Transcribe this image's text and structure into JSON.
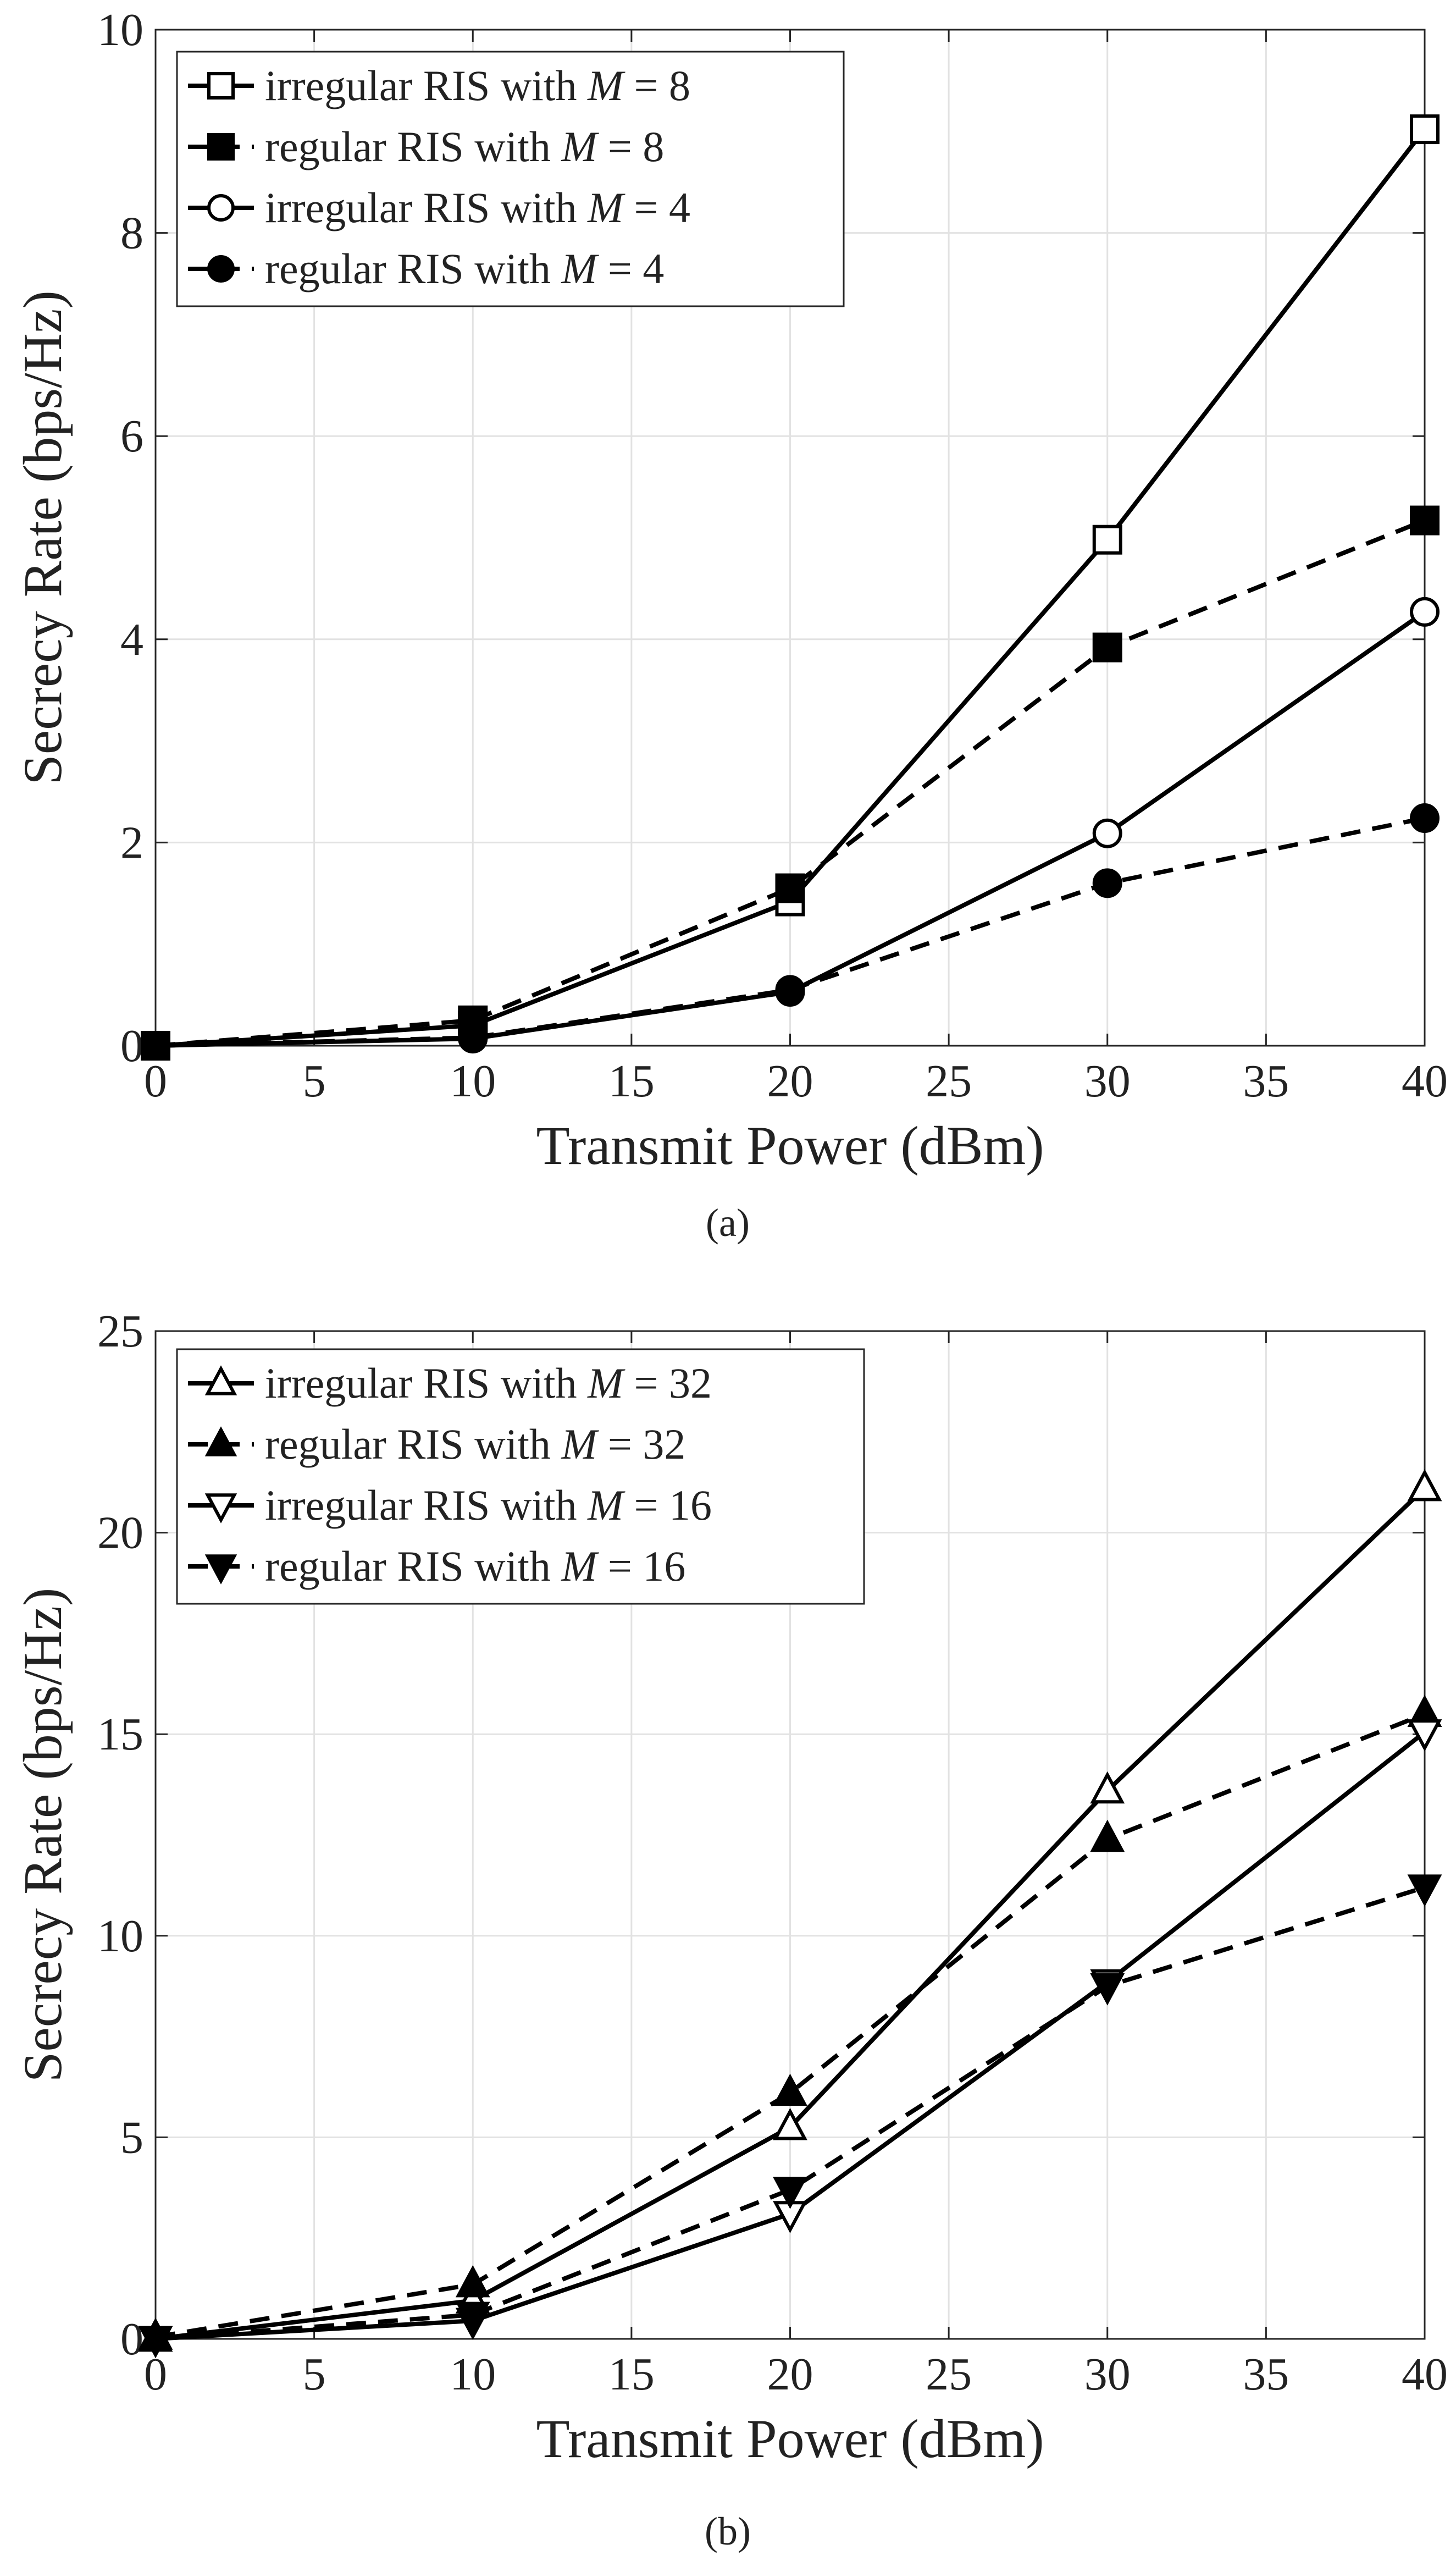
{
  "figure": {
    "captions": [
      "(a)",
      "(b)"
    ]
  },
  "chart_data": [
    {
      "type": "line",
      "caption": "(a)",
      "xlabel": "Transmit Power (dBm)",
      "ylabel": "Secrecy Rate (bps/Hz)",
      "xlim": [
        0,
        40
      ],
      "ylim": [
        0,
        10
      ],
      "xticks": [
        0,
        5,
        10,
        15,
        20,
        25,
        30,
        35,
        40
      ],
      "yticks": [
        0,
        2,
        4,
        6,
        8,
        10
      ],
      "grid": true,
      "legend_position": "top-left",
      "x": [
        0,
        10,
        20,
        30,
        40
      ],
      "series": [
        {
          "name": "irregular RIS with M = 8",
          "label_prefix": "irregular RIS with ",
          "label_var": "M",
          "label_val": "8",
          "values": [
            0,
            0.2,
            1.42,
            4.98,
            9.02
          ],
          "marker": "square",
          "filled": false,
          "dashed": false
        },
        {
          "name": "regular RIS with M = 8",
          "label_prefix": "regular RIS with ",
          "label_var": "M",
          "label_val": "8",
          "values": [
            0,
            0.25,
            1.55,
            3.92,
            5.17
          ],
          "marker": "square",
          "filled": true,
          "dashed": true
        },
        {
          "name": "irregular RIS with M = 4",
          "label_prefix": "irregular RIS with ",
          "label_var": "M",
          "label_val": "4",
          "values": [
            0,
            0.07,
            0.53,
            2.09,
            4.27
          ],
          "marker": "circle",
          "filled": false,
          "dashed": false
        },
        {
          "name": "regular RIS with M = 4",
          "label_prefix": "regular RIS with ",
          "label_var": "M",
          "label_val": "4",
          "values": [
            0,
            0.08,
            0.55,
            1.6,
            2.24
          ],
          "marker": "circle",
          "filled": true,
          "dashed": true
        }
      ]
    },
    {
      "type": "line",
      "caption": "(b)",
      "xlabel": "Transmit Power (dBm)",
      "ylabel": "Secrecy Rate (bps/Hz)",
      "xlim": [
        0,
        40
      ],
      "ylim": [
        0,
        25
      ],
      "xticks": [
        0,
        5,
        10,
        15,
        20,
        25,
        30,
        35,
        40
      ],
      "yticks": [
        0,
        5,
        10,
        15,
        20,
        25
      ],
      "grid": true,
      "legend_position": "top-left",
      "x": [
        0,
        10,
        20,
        30,
        40
      ],
      "series": [
        {
          "name": "irregular RIS with M = 32",
          "label_prefix": "irregular RIS with ",
          "label_var": "M",
          "label_val": "32",
          "values": [
            0,
            0.95,
            5.25,
            13.6,
            21.1
          ],
          "marker": "triangle-up",
          "filled": false,
          "dashed": false
        },
        {
          "name": "regular RIS with M = 32",
          "label_prefix": "regular RIS with ",
          "label_var": "M",
          "label_val": "32",
          "values": [
            0.05,
            1.35,
            6.1,
            12.4,
            15.5
          ],
          "marker": "triangle-up",
          "filled": true,
          "dashed": true
        },
        {
          "name": "irregular RIS with M = 16",
          "label_prefix": "irregular RIS with ",
          "label_var": "M",
          "label_val": "16",
          "values": [
            0,
            0.45,
            3.1,
            8.85,
            15.05
          ],
          "marker": "triangle-down",
          "filled": false,
          "dashed": false
        },
        {
          "name": "regular RIS with M = 16",
          "label_prefix": "regular RIS with ",
          "label_var": "M",
          "label_val": "16",
          "values": [
            0,
            0.6,
            3.7,
            8.75,
            11.2
          ],
          "marker": "triangle-down",
          "filled": true,
          "dashed": true
        }
      ]
    }
  ]
}
